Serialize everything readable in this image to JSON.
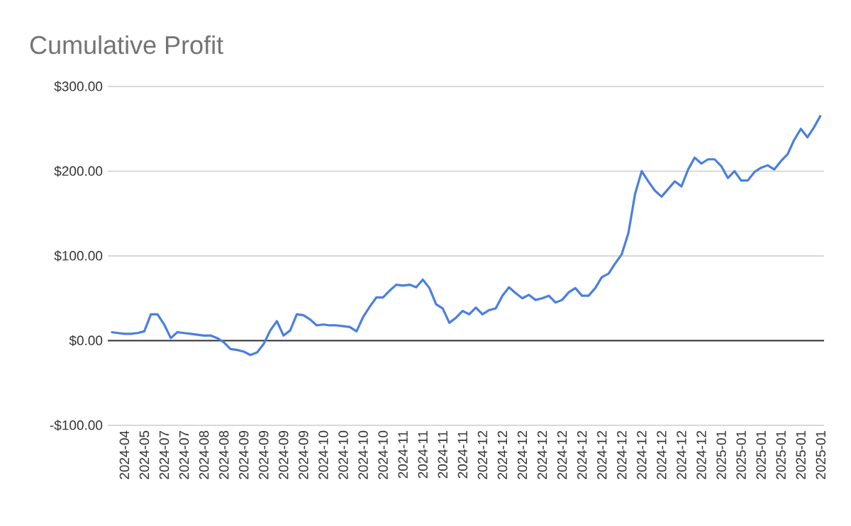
{
  "chart_data": {
    "type": "line",
    "title": "Cumulative Profit",
    "categories": [
      null,
      null,
      "2024-04",
      null,
      null,
      "2024-05",
      null,
      null,
      "2024-07",
      null,
      null,
      "2024-07",
      null,
      null,
      "2024-08",
      null,
      null,
      "2024-08",
      null,
      null,
      "2024-09",
      null,
      null,
      "2024-09",
      null,
      null,
      "2024-09",
      null,
      null,
      "2024-09",
      null,
      null,
      "2024-10",
      null,
      null,
      "2024-10",
      null,
      null,
      "2024-10",
      null,
      null,
      "2024-10",
      null,
      null,
      "2024-11",
      null,
      null,
      "2024-11",
      null,
      null,
      "2024-11",
      null,
      null,
      "2024-11",
      null,
      null,
      "2024-12",
      null,
      null,
      "2024-12",
      null,
      null,
      "2024-12",
      null,
      null,
      "2024-12",
      null,
      null,
      "2024-12",
      null,
      null,
      "2024-12",
      null,
      null,
      "2024-12",
      null,
      null,
      "2024-12",
      null,
      null,
      "2024-12",
      null,
      null,
      "2024-12",
      null,
      null,
      "2024-12",
      null,
      null,
      "2024-12",
      null,
      null,
      "2025-01",
      null,
      null,
      "2025-01",
      null,
      null,
      "2025-01",
      null,
      null,
      "2025-01",
      null,
      null,
      "2025-01",
      null,
      null,
      "2025-01"
    ],
    "series": [
      {
        "color": "#4a7fe0",
        "values": [
          10,
          9,
          8,
          8,
          9,
          11,
          31,
          31,
          19,
          3,
          10,
          9,
          8,
          7,
          6,
          6,
          3,
          -2,
          -10,
          -11,
          -13,
          -17,
          -14,
          -4,
          12,
          23,
          6,
          12,
          31,
          30,
          25,
          18,
          19,
          18,
          18,
          17,
          16,
          11,
          28,
          40,
          51,
          51,
          59,
          66,
          65,
          66,
          63,
          72,
          62,
          43,
          38,
          21,
          27,
          35,
          31,
          39,
          31,
          36,
          38,
          53,
          63,
          56,
          50,
          54,
          48,
          50,
          53,
          45,
          48,
          57,
          62,
          53,
          53,
          62,
          75,
          79,
          91,
          102,
          127,
          173,
          200,
          188,
          177,
          170,
          179,
          188,
          182,
          202,
          216,
          209,
          214,
          214,
          206,
          192,
          200,
          189,
          189,
          199,
          204,
          207,
          202,
          212,
          220,
          237,
          250,
          240,
          252,
          266
        ]
      }
    ],
    "ylim": [
      -100,
      300
    ],
    "yticks": [
      {
        "value": -100,
        "label": "-$100.00"
      },
      {
        "value": 0,
        "label": "$0.00"
      },
      {
        "value": 100,
        "label": "$100.00"
      },
      {
        "value": 200,
        "label": "$200.00"
      },
      {
        "value": 300,
        "label": "$300.00"
      }
    ],
    "grid": "y",
    "ref_lines": [
      {
        "axis": "y",
        "value": 0,
        "color": "#333333"
      }
    ],
    "marker": "none",
    "line_style": "solid"
  }
}
